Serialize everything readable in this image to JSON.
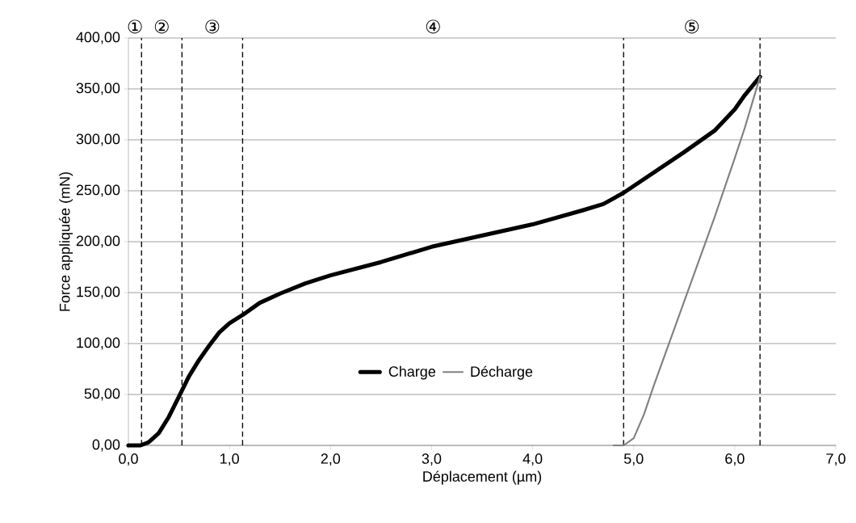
{
  "chart_data": {
    "type": "line",
    "xlabel": "Déplacement (µm)",
    "ylabel": "Force appliquée (mN)",
    "xlim": [
      0,
      7
    ],
    "ylim": [
      0,
      400
    ],
    "xticks": [
      {
        "value": 0,
        "label": "0,0"
      },
      {
        "value": 1,
        "label": "1,0"
      },
      {
        "value": 2,
        "label": "2,0"
      },
      {
        "value": 3,
        "label": "3,0"
      },
      {
        "value": 4,
        "label": "4,0"
      },
      {
        "value": 5,
        "label": "5,0"
      },
      {
        "value": 6,
        "label": "6,0"
      },
      {
        "value": 7,
        "label": "7,0"
      }
    ],
    "yticks": [
      {
        "value": 0,
        "label": "0,00"
      },
      {
        "value": 50,
        "label": "50,00"
      },
      {
        "value": 100,
        "label": "100,00"
      },
      {
        "value": 150,
        "label": "150,00"
      },
      {
        "value": 200,
        "label": "200,00"
      },
      {
        "value": 250,
        "label": "250,00"
      },
      {
        "value": 300,
        "label": "300,00"
      },
      {
        "value": 350,
        "label": "350,00"
      },
      {
        "value": 400,
        "label": "400,00"
      }
    ],
    "grid": "y",
    "legend": "bottom",
    "marker": "none",
    "series": [
      {
        "name": "Charge",
        "color": "#000000",
        "x": [
          0,
          0.12,
          0.2,
          0.3,
          0.4,
          0.5,
          0.6,
          0.7,
          0.8,
          0.9,
          1.0,
          1.13,
          1.3,
          1.5,
          1.75,
          2.0,
          2.5,
          3.0,
          3.5,
          4.0,
          4.5,
          4.7,
          4.9,
          5.2,
          5.5,
          5.8,
          6.0,
          6.1,
          6.25
        ],
        "values": [
          0,
          0,
          3,
          12,
          28,
          48,
          68,
          84,
          98,
          111,
          120,
          128,
          140,
          149,
          159,
          167,
          180,
          195,
          206,
          217,
          231,
          237,
          248,
          268,
          288,
          309,
          330,
          344,
          362
        ]
      },
      {
        "name": "Décharge",
        "color": "#808080",
        "x": [
          4.8,
          4.9,
          5.0,
          5.1,
          5.2,
          5.4,
          5.6,
          5.8,
          6.0,
          6.1,
          6.25
        ],
        "values": [
          0,
          0,
          7,
          30,
          59,
          114,
          169,
          224,
          282,
          312,
          362
        ]
      }
    ],
    "ref_lines": [
      {
        "axis": "x",
        "value": 0.13,
        "color": "#000000",
        "line_style": "dashed"
      },
      {
        "axis": "x",
        "value": 0.53,
        "color": "#000000",
        "line_style": "dashed"
      },
      {
        "axis": "x",
        "value": 1.13,
        "color": "#000000",
        "line_style": "dashed"
      },
      {
        "axis": "x",
        "value": 4.9,
        "color": "#000000",
        "line_style": "dashed"
      },
      {
        "axis": "x",
        "value": 6.25,
        "color": "#000000",
        "line_style": "dashed"
      }
    ],
    "annotations": [
      "①",
      "②",
      "③",
      "④",
      "⑤"
    ]
  }
}
